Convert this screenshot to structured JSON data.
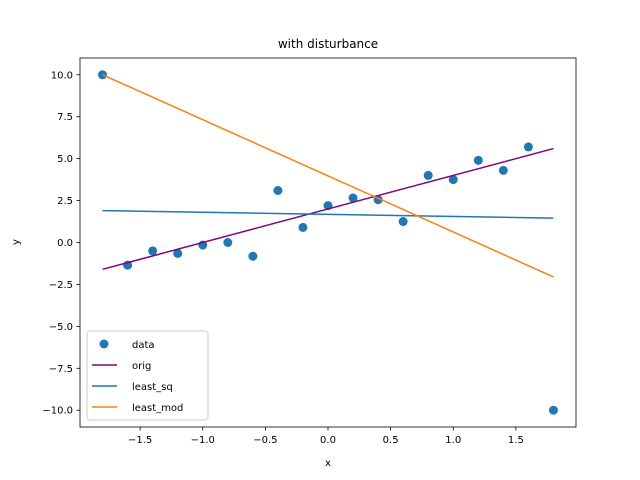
{
  "chart_data": {
    "type": "scatter",
    "title": "with disturbance",
    "xlabel": "x",
    "ylabel": "y",
    "xlim": [
      -1.98,
      1.98
    ],
    "ylim": [
      -11.0,
      11.0
    ],
    "xticks": [
      -1.5,
      -1.0,
      -0.5,
      0.0,
      0.5,
      1.0,
      1.5
    ],
    "xtick_labels": [
      "−1.5",
      "−1.0",
      "−0.5",
      "0.0",
      "0.5",
      "1.0",
      "1.5"
    ],
    "yticks": [
      -10.0,
      -7.5,
      -5.0,
      -2.5,
      0.0,
      2.5,
      5.0,
      7.5,
      10.0
    ],
    "ytick_labels": [
      "−10.0",
      "−7.5",
      "−5.0",
      "−2.5",
      "0.0",
      "2.5",
      "5.0",
      "7.5",
      "10.0"
    ],
    "grid": false,
    "legend_position": "lower-left",
    "scatter": {
      "name": "data",
      "color": "#1f77b4",
      "x": [
        -1.8,
        -1.6,
        -1.4,
        -1.2,
        -1.0,
        -0.8,
        -0.6,
        -0.4,
        -0.2,
        0.0,
        0.2,
        0.4,
        0.6,
        0.8,
        1.0,
        1.2,
        1.4,
        1.6,
        1.8
      ],
      "y": [
        10.0,
        -1.35,
        -0.5,
        -0.65,
        -0.15,
        0.0,
        -0.82,
        3.1,
        0.9,
        2.2,
        2.65,
        2.55,
        1.25,
        4.0,
        3.75,
        4.9,
        4.3,
        5.7,
        -10.0
      ]
    },
    "series": [
      {
        "name": "orig",
        "color": "#800080",
        "x": [
          -1.8,
          1.8
        ],
        "y": [
          -1.6,
          5.6
        ]
      },
      {
        "name": "least_sq",
        "color": "#1f77b4",
        "x": [
          -1.8,
          1.8
        ],
        "y": [
          1.9,
          1.45
        ]
      },
      {
        "name": "least_mod",
        "color": "#ff7f0e",
        "x": [
          -1.8,
          1.8
        ],
        "y": [
          10.0,
          -2.05
        ]
      }
    ]
  }
}
